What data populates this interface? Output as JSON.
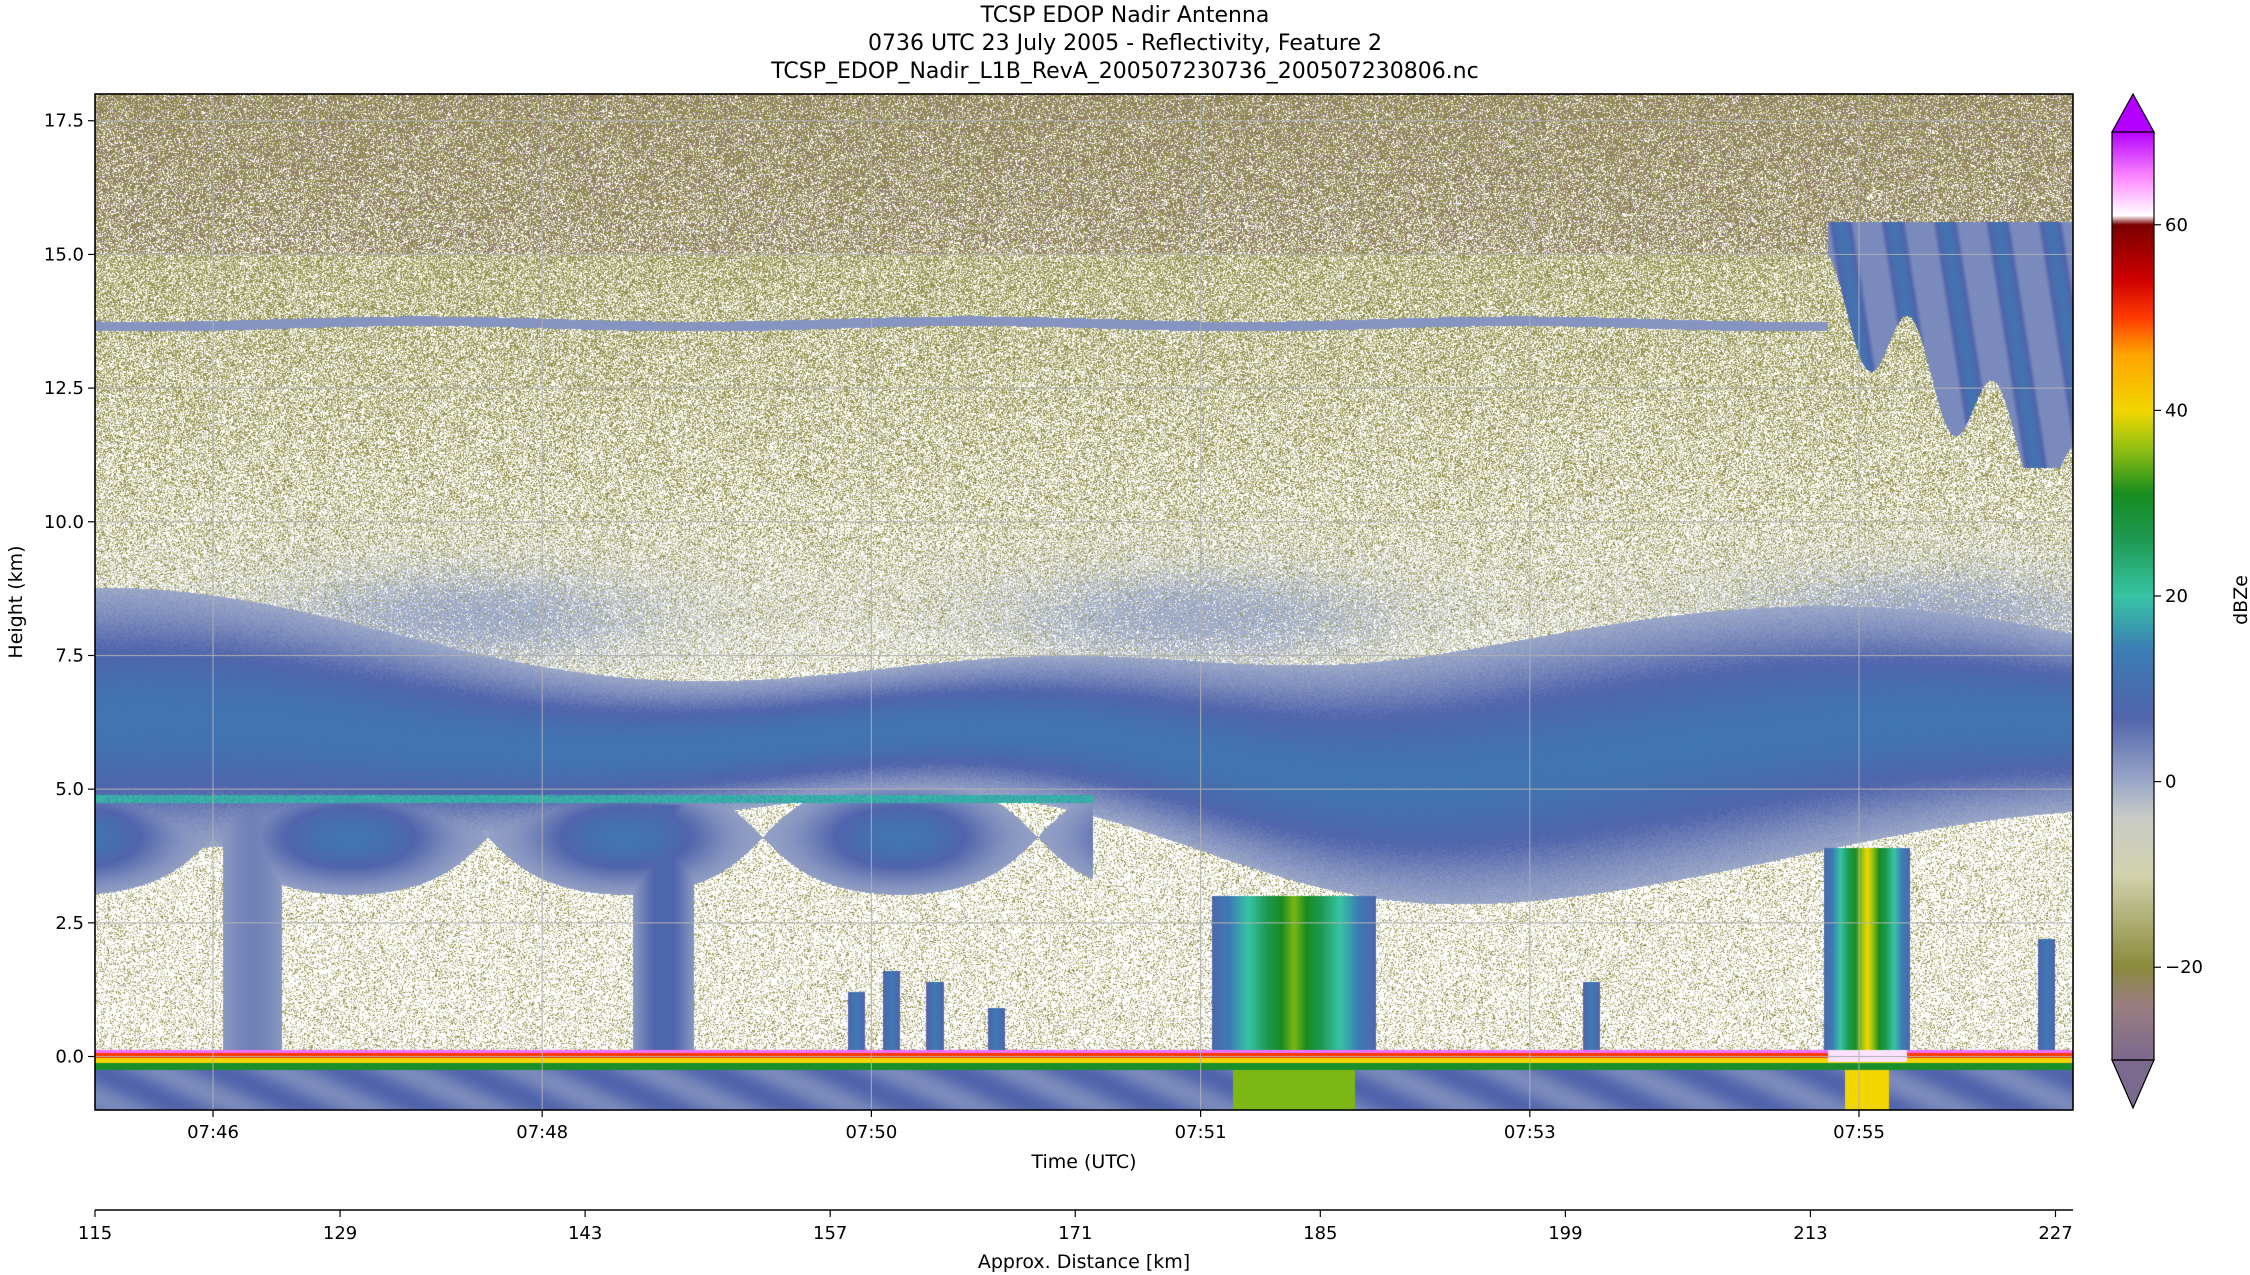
{
  "chart_data": {
    "type": "heatmap",
    "title": [
      "TCSP EDOP Nadir Antenna",
      "0736 UTC 23 July 2005 - Reflectivity, Feature 2",
      "TCSP_EDOP_Nadir_L1B_RevA_200507230736_200507230806.nc"
    ],
    "xlabel": "Time (UTC)",
    "ylabel": "Height (km)",
    "x2label": "Approx. Distance [km]",
    "colorbar_label": "dBZe",
    "x_ticks": [
      "07:46",
      "07:48",
      "07:50",
      "07:51",
      "07:53",
      "07:55"
    ],
    "y_ticks": [
      "0.0",
      "2.5",
      "5.0",
      "7.5",
      "10.0",
      "12.5",
      "15.0",
      "17.5"
    ],
    "ylim": [
      -1.0,
      18.0
    ],
    "x2_ticks": [
      "115",
      "129",
      "143",
      "157",
      "171",
      "185",
      "199",
      "213",
      "227"
    ],
    "x2lim": [
      115,
      228
    ],
    "colorbar_ticks": [
      "−20",
      "0",
      "20",
      "40",
      "60"
    ],
    "colorbar_range": [
      -30,
      70
    ],
    "grid": true,
    "colormap": [
      {
        "v": -30,
        "c": "#7c6a8e"
      },
      {
        "v": -24,
        "c": "#9a7e80"
      },
      {
        "v": -20,
        "c": "#8a8a3c"
      },
      {
        "v": -10,
        "c": "#d2d2ae"
      },
      {
        "v": -4,
        "c": "#c9ccc6"
      },
      {
        "v": 0,
        "c": "#9aa7c8"
      },
      {
        "v": 7,
        "c": "#5064ac"
      },
      {
        "v": 14,
        "c": "#3c7cb4"
      },
      {
        "v": 20,
        "c": "#37c4a4"
      },
      {
        "v": 26,
        "c": "#1e9a54"
      },
      {
        "v": 31,
        "c": "#178c1f"
      },
      {
        "v": 36,
        "c": "#95c212"
      },
      {
        "v": 40,
        "c": "#f2d600"
      },
      {
        "v": 46,
        "c": "#ffa500"
      },
      {
        "v": 50,
        "c": "#ff3a00"
      },
      {
        "v": 54,
        "c": "#d00000"
      },
      {
        "v": 60,
        "c": "#7a0000"
      },
      {
        "v": 61,
        "c": "#ffffff"
      },
      {
        "v": 65,
        "c": "#ff8cff"
      },
      {
        "v": 70,
        "c": "#b400ff"
      }
    ],
    "features": [
      {
        "name": "upper-noise",
        "dbz": -22,
        "density": 0.8
      },
      {
        "name": "stratiform-layer",
        "x_km": [
          115,
          228
        ],
        "y_km": [
          4.0,
          7.0
        ],
        "dbz": 7
      },
      {
        "name": "bright-band",
        "x_km": [
          115,
          172
        ],
        "y_km": [
          4.75,
          4.9
        ],
        "dbz": 18
      },
      {
        "name": "anvil-layer",
        "x_km": [
          214,
          228
        ],
        "y_km": [
          11,
          15.5
        ],
        "dbz": 10
      },
      {
        "name": "tropopause-line",
        "x_km": [
          115,
          214
        ],
        "y_km": 13.7,
        "dbz": 2
      },
      {
        "name": "convective-core",
        "x_km": [
          180,
          187
        ],
        "y_km": [
          -1,
          3
        ],
        "dbz": 35
      },
      {
        "name": "convective-core",
        "x_km": [
          215,
          217.5
        ],
        "y_km": [
          -1,
          3.9
        ],
        "dbz": 40
      },
      {
        "name": "surface-return",
        "y_km": [
          -0.2,
          0.1
        ],
        "dbz": 62
      }
    ]
  }
}
